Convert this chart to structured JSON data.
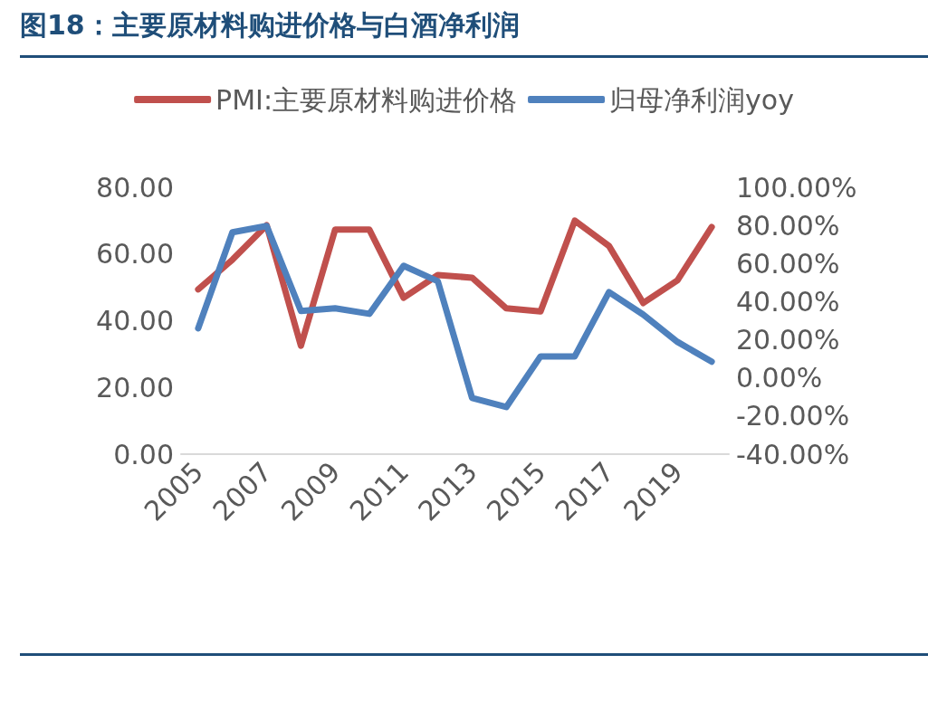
{
  "chart_data": {
    "type": "line",
    "title": "图18：主要原材料购进价格与白酒净利润",
    "categories": [
      "2005",
      null,
      "2007",
      null,
      "2009",
      null,
      "2011",
      null,
      "2013",
      null,
      "2015",
      null,
      "2017",
      null,
      "2019",
      null
    ],
    "series": [
      {
        "name": "PMI:主要原材料购进价格",
        "color": "#c0504d",
        "values": [
          49.4,
          58.3,
          68.6,
          32.5,
          67.3,
          67.3,
          46.9,
          53.7,
          52.9,
          43.7,
          42.8,
          70.0,
          62.4,
          45.3,
          52.1,
          68.1
        ]
      },
      {
        "name": "归母净利润yoy",
        "color": "#4f81bd",
        "axis": "y2",
        "values": [
          26.0,
          76.4,
          79.7,
          35.1,
          36.5,
          33.6,
          58.8,
          50.7,
          -10.5,
          -15.3,
          11.3,
          11.3,
          45.0,
          33.2,
          18.9,
          8.5
        ]
      }
    ],
    "ylim": [
      0,
      80
    ],
    "yticks": [
      {
        "value": 0,
        "label": "0.00"
      },
      {
        "value": 20,
        "label": "20.00"
      },
      {
        "value": 40,
        "label": "40.00"
      },
      {
        "value": 60,
        "label": "60.00"
      },
      {
        "value": 80,
        "label": "80.00"
      }
    ],
    "y2lim": [
      -40,
      100
    ],
    "y2ticks": [
      {
        "value": -40,
        "label": "-40.00%"
      },
      {
        "value": -20,
        "label": "-20.00%"
      },
      {
        "value": 0,
        "label": "0.00%"
      },
      {
        "value": 20,
        "label": "20.00%"
      },
      {
        "value": 40,
        "label": "40.00%"
      },
      {
        "value": 60,
        "label": "60.00%"
      },
      {
        "value": 80,
        "label": "80.00%"
      },
      {
        "value": 100,
        "label": "100.00%"
      }
    ],
    "legend": "top",
    "grid": false,
    "marker": "none",
    "line_style": "solid"
  }
}
